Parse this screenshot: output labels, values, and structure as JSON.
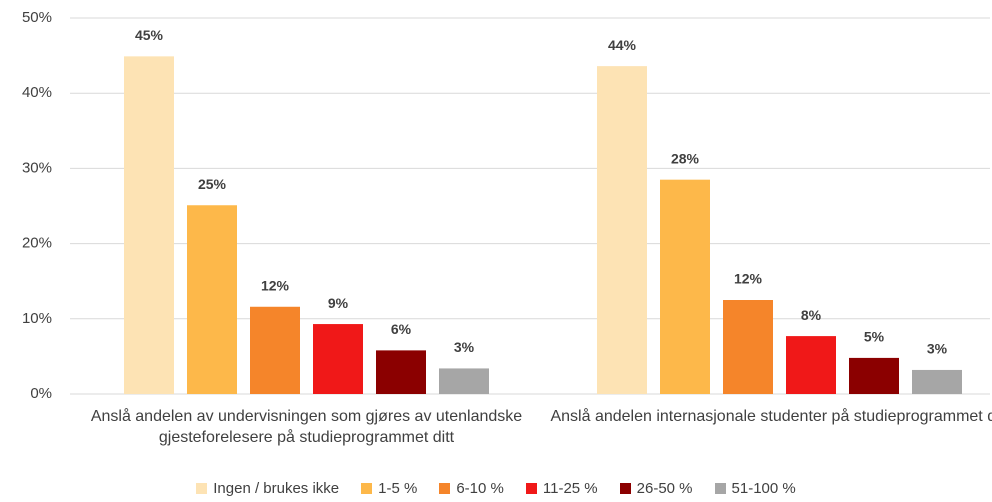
{
  "chart_data": {
    "type": "bar",
    "categories": [
      "Anslå andelen av undervisningen som gjøres av utenlandske gjesteforelesere på studieprogrammet ditt",
      "Anslå andelen internasjonale studenter på studieprogrammet ditt"
    ],
    "series": [
      {
        "name": "Ingen / brukes ikke",
        "color": "#fde3b4",
        "values": [
          44.9,
          43.6
        ],
        "value_labels": [
          "45%",
          "44%"
        ]
      },
      {
        "name": "1-5 %",
        "color": "#fdb84a",
        "values": [
          25.1,
          28.5
        ],
        "value_labels": [
          "25%",
          "28%"
        ]
      },
      {
        "name": "6-10 %",
        "color": "#f5852a",
        "values": [
          11.6,
          12.5
        ],
        "value_labels": [
          "12%",
          "12%"
        ]
      },
      {
        "name": "11-25 %",
        "color": "#f01818",
        "values": [
          9.3,
          7.7
        ],
        "value_labels": [
          "9%",
          "8%"
        ]
      },
      {
        "name": "26-50 %",
        "color": "#8b0000",
        "values": [
          5.8,
          4.8
        ],
        "value_labels": [
          "6%",
          "5%"
        ]
      },
      {
        "name": "51-100 %",
        "color": "#a6a6a6",
        "values": [
          3.4,
          3.2
        ],
        "value_labels": [
          "3%",
          "3%"
        ]
      }
    ],
    "ylim": [
      0,
      50
    ],
    "yticks": [
      {
        "value": 0,
        "label": "0%"
      },
      {
        "value": 10,
        "label": "10%"
      },
      {
        "value": 20,
        "label": "20%"
      },
      {
        "value": 30,
        "label": "30%"
      },
      {
        "value": 40,
        "label": "40%"
      },
      {
        "value": 50,
        "label": "50%"
      }
    ],
    "grid": true,
    "legend": "bottom"
  }
}
